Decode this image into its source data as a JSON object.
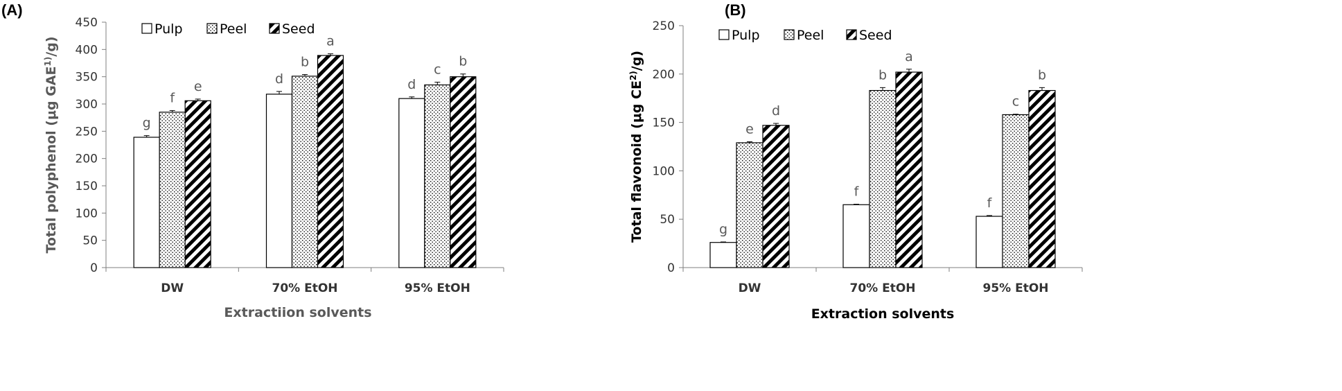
{
  "series_styles": [
    {
      "name": "Pulp",
      "fill": "#ffffff",
      "pattern": "none"
    },
    {
      "name": "Peel",
      "fill": "#ffffff",
      "pattern": "dots"
    },
    {
      "name": "Seed",
      "fill": "#ffffff",
      "pattern": "diagonal-stripes"
    }
  ],
  "chart_data": [
    {
      "type": "bar",
      "panel_label": "(A)",
      "ylabel": "Total polyphenol (μg GAE¹⁾/g)",
      "ylabel_parts": {
        "pre": "Total polyphenol (μg GAE",
        "sup": "1)",
        "post": "/g)"
      },
      "xlabel": "Extractiion solvents",
      "ylim": [
        0,
        450
      ],
      "yticks": [
        0,
        50,
        100,
        150,
        200,
        250,
        300,
        350,
        400,
        450
      ],
      "categories": [
        "DW",
        "70% EtOH",
        "95% EtOH"
      ],
      "legend_position": "top-left",
      "series": [
        {
          "name": "Pulp",
          "values": [
            239,
            318,
            310
          ],
          "errors": [
            3,
            5,
            3
          ],
          "letters": [
            "g",
            "d",
            "d"
          ]
        },
        {
          "name": "Peel",
          "values": [
            285,
            351,
            335
          ],
          "errors": [
            3,
            3,
            5
          ],
          "letters": [
            "f",
            "b",
            "c"
          ]
        },
        {
          "name": "Seed",
          "values": [
            306,
            389,
            350
          ],
          "errors": [
            3,
            3,
            5
          ],
          "letters": [
            "e",
            "a",
            "b"
          ]
        }
      ]
    },
    {
      "type": "bar",
      "panel_label": "(B)",
      "ylabel": "Total flavonoid (μg CE²⁾/g)",
      "ylabel_parts": {
        "pre": "Total flavonoid (μg CE",
        "sup": "2)",
        "post": "/g)"
      },
      "xlabel": "Extraction solvents",
      "ylim": [
        0,
        250
      ],
      "yticks": [
        0,
        50,
        100,
        150,
        200,
        250
      ],
      "categories": [
        "DW",
        "70% EtOH",
        "95% EtOH"
      ],
      "legend_position": "top-left",
      "series": [
        {
          "name": "Pulp",
          "values": [
            26,
            65,
            53
          ],
          "errors": [
            0.5,
            0.5,
            0.8
          ],
          "letters": [
            "g",
            "f",
            "f"
          ]
        },
        {
          "name": "Peel",
          "values": [
            129,
            183,
            158
          ],
          "errors": [
            1,
            3,
            0.5
          ],
          "letters": [
            "e",
            "b",
            "c"
          ]
        },
        {
          "name": "Seed",
          "values": [
            147,
            202,
            183
          ],
          "errors": [
            2,
            3,
            3
          ],
          "letters": [
            "d",
            "a",
            "b"
          ]
        }
      ]
    }
  ]
}
